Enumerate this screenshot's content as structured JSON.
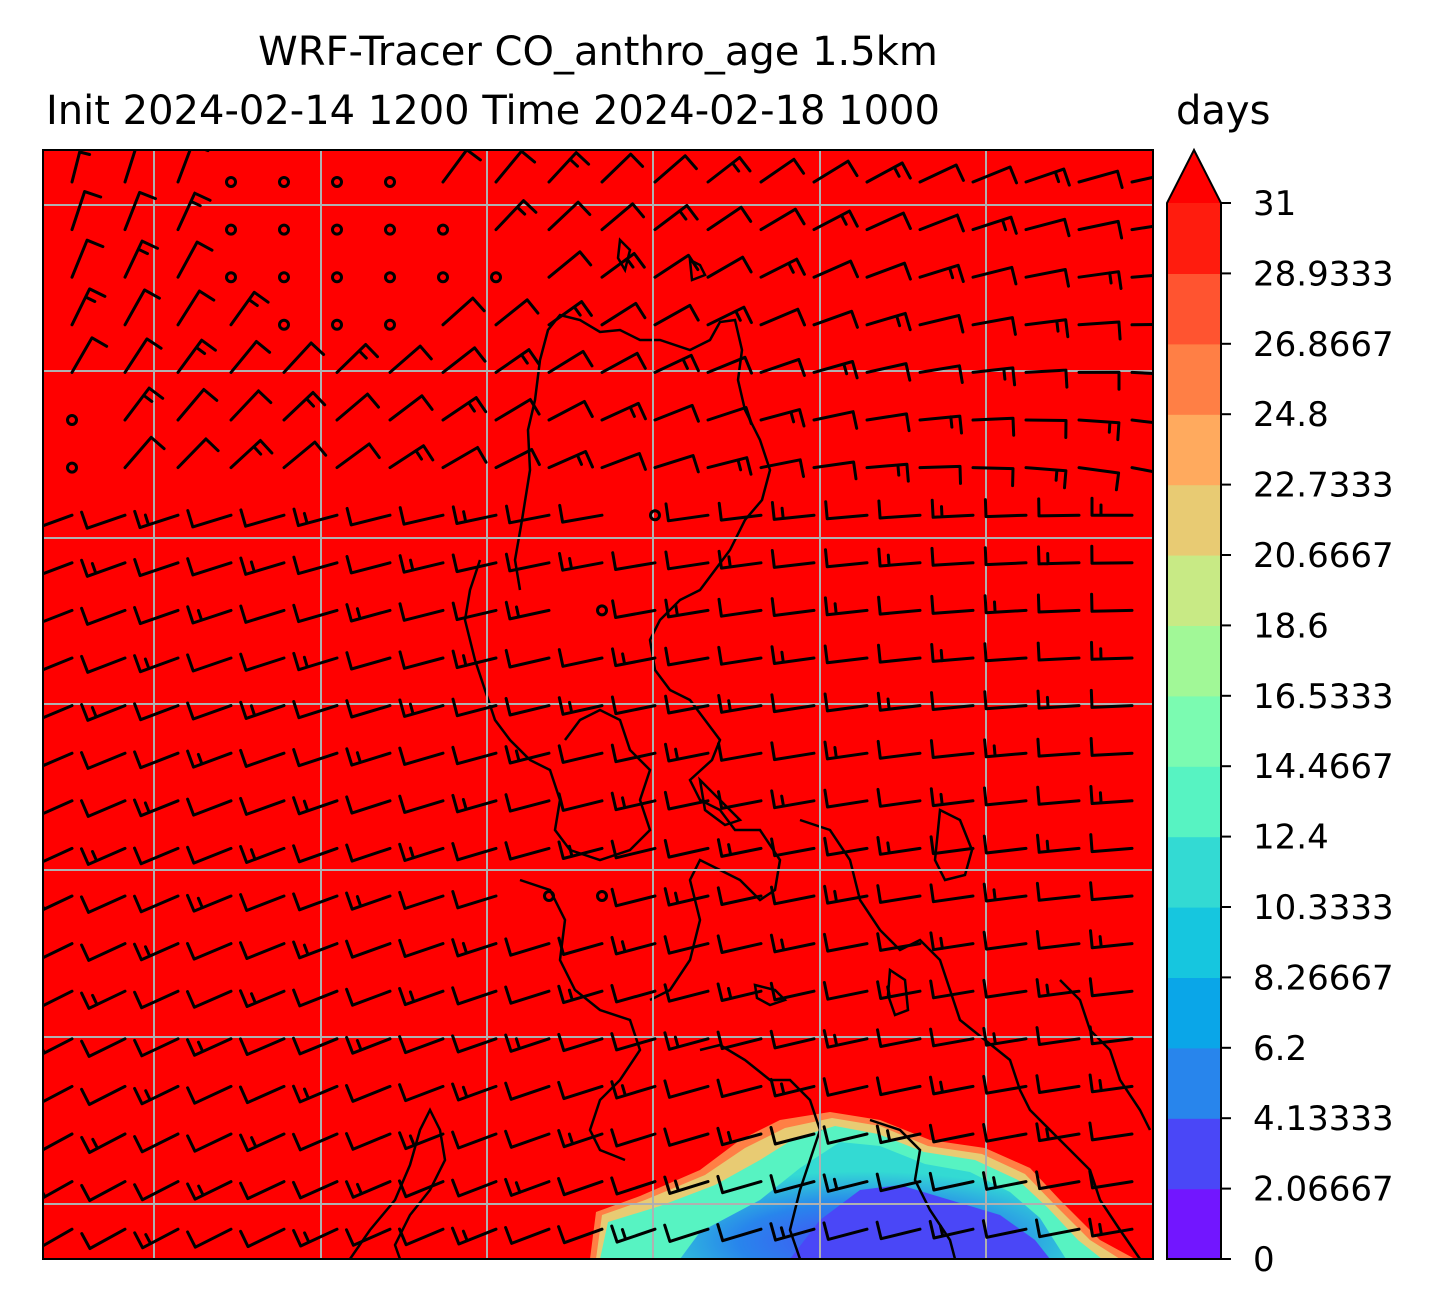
{
  "title": {
    "line1": "WRF-Tracer CO_anthro_age 1.5km",
    "line2": "Init 2024-02-14 1200 Time 2024-02-18 1000",
    "units": "days"
  },
  "colors": {
    "background_field": "#ff0000",
    "gridline": "#b0b0b0",
    "barb": "#000000",
    "coastline": "#000000"
  },
  "colorbar": {
    "min": 0,
    "max": 31,
    "extend": "max",
    "tick_labels": [
      "0",
      "2.06667",
      "4.13333",
      "6.2",
      "8.26667",
      "10.3333",
      "12.4",
      "14.4667",
      "16.5333",
      "18.6",
      "20.6667",
      "22.7333",
      "24.8",
      "26.8667",
      "28.9333",
      "31"
    ],
    "levels": [
      {
        "from": 0,
        "to": 2.06667,
        "color": "#7216ff"
      },
      {
        "from": 2.06667,
        "to": 4.13333,
        "color": "#4a47f7"
      },
      {
        "from": 4.13333,
        "to": 6.2,
        "color": "#2885ec"
      },
      {
        "from": 6.2,
        "to": 8.26667,
        "color": "#0aa6e8"
      },
      {
        "from": 8.26667,
        "to": 10.3333,
        "color": "#16c6df"
      },
      {
        "from": 10.3333,
        "to": 12.4,
        "color": "#33dad3"
      },
      {
        "from": 12.4,
        "to": 14.4667,
        "color": "#57f3c2"
      },
      {
        "from": 14.4667,
        "to": 16.5333,
        "color": "#7bfbb1"
      },
      {
        "from": 16.5333,
        "to": 18.6,
        "color": "#a1f897"
      },
      {
        "from": 18.6,
        "to": 20.6667,
        "color": "#c8ea85"
      },
      {
        "from": 20.6667,
        "to": 22.7333,
        "color": "#e8cb73"
      },
      {
        "from": 22.7333,
        "to": 24.8,
        "color": "#ffaa5e"
      },
      {
        "from": 24.8,
        "to": 26.8667,
        "color": "#ff7f45"
      },
      {
        "from": 26.8667,
        "to": 28.9333,
        "color": "#ff5430"
      },
      {
        "from": 28.9333,
        "to": 31,
        "color": "#ff1c0e"
      },
      {
        "from": 31,
        "to": 40,
        "color": "#ff0000"
      }
    ]
  }
}
